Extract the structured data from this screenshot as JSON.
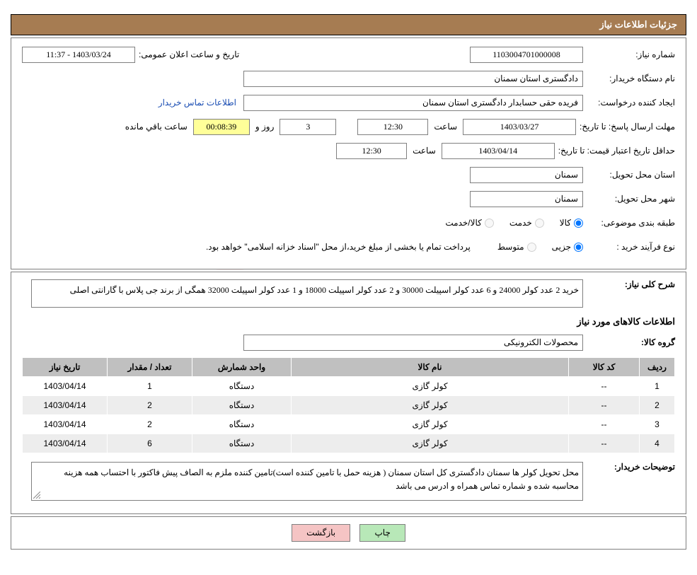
{
  "header": {
    "title": "جزئیات اطلاعات نیاز"
  },
  "form": {
    "request_number_label": "شماره نیاز:",
    "request_number": "1103004701000008",
    "announce_date_label": "تاریخ و ساعت اعلان عمومی:",
    "announce_date": "1403/03/24 - 11:37",
    "buyer_org_label": "نام دستگاه خریدار:",
    "buyer_org": "دادگستری استان سمنان",
    "requester_label": "ایجاد کننده درخواست:",
    "requester": "فریده حقی حسابدار دادگستری استان سمنان",
    "contact_link": "اطلاعات تماس خریدار",
    "deadline_label": "مهلت ارسال پاسخ: تا تاریخ:",
    "deadline_date": "1403/03/27",
    "time_label": "ساعت",
    "deadline_time": "12:30",
    "days_label": "روز و",
    "days_remaining": "3",
    "hours_remaining": "00:08:39",
    "remaining_label": "ساعت باقي مانده",
    "validity_label": "حداقل تاریخ اعتبار قیمت: تا تاریخ:",
    "validity_date": "1403/04/14",
    "validity_time": "12:30",
    "province_label": "استان محل تحویل:",
    "province": "سمنان",
    "city_label": "شهر محل تحویل:",
    "city": "سمنان",
    "category_label": "طبقه بندی موضوعی:",
    "cat_goods": "کالا",
    "cat_service": "خدمت",
    "cat_both": "کالا/خدمت",
    "purchase_type_label": "نوع فرآیند خرید :",
    "pt_minor": "جزیی",
    "pt_medium": "متوسط",
    "purchase_note": "پرداخت تمام یا بخشی از مبلغ خرید،از محل \"اسناد خزانه اسلامی\" خواهد بود."
  },
  "details": {
    "general_label": "شرح کلی نیاز:",
    "general_desc": "خرید 2 عدد کولر 24000 و 6 عدد کولر اسپیلت 30000 و 2 عدد کولر اسپیلت 18000 و 1 عدد کولر اسپیلت 32000 همگی از برند جی پلاس با گارانتی اصلی",
    "items_title": "اطلاعات کالاهای مورد نیاز",
    "group_label": "گروه کالا:",
    "group_value": "محصولات الکترونیکی",
    "table_headers": {
      "row": "ردیف",
      "code": "کد کالا",
      "name": "نام کالا",
      "unit": "واحد شمارش",
      "qty": "تعداد / مقدار",
      "date": "تاریخ نیاز"
    },
    "rows": [
      {
        "idx": "1",
        "code": "--",
        "name": "کولر گازی",
        "unit": "دستگاه",
        "qty": "1",
        "date": "1403/04/14"
      },
      {
        "idx": "2",
        "code": "--",
        "name": "کولر گازی",
        "unit": "دستگاه",
        "qty": "2",
        "date": "1403/04/14"
      },
      {
        "idx": "3",
        "code": "--",
        "name": "کولر گازی",
        "unit": "دستگاه",
        "qty": "2",
        "date": "1403/04/14"
      },
      {
        "idx": "4",
        "code": "--",
        "name": "کولر گازی",
        "unit": "دستگاه",
        "qty": "6",
        "date": "1403/04/14"
      }
    ],
    "buyer_notes_label": "توضیحات خریدار:",
    "buyer_notes": "محل تحویل کولر ها سمنان دادگستری کل استان سمنان ( هزینه حمل با تامین کننده است)تامین کننده ملزم به الصاف پیش فاکتور با احتساب همه هزینه محاسبه شده و شماره تماس همراه و ادرس می باشد"
  },
  "buttons": {
    "print": "چاپ",
    "back": "بازگشت"
  },
  "colors": {
    "header_bg": "#a67c52",
    "panel_border": "#808080",
    "th_bg": "#c0c0c0",
    "row_alt": "#ededed",
    "link": "#1a4db3",
    "btn_print": "#b8e8b8",
    "btn_back": "#f5c4c4",
    "watermark": "#d9534f"
  }
}
